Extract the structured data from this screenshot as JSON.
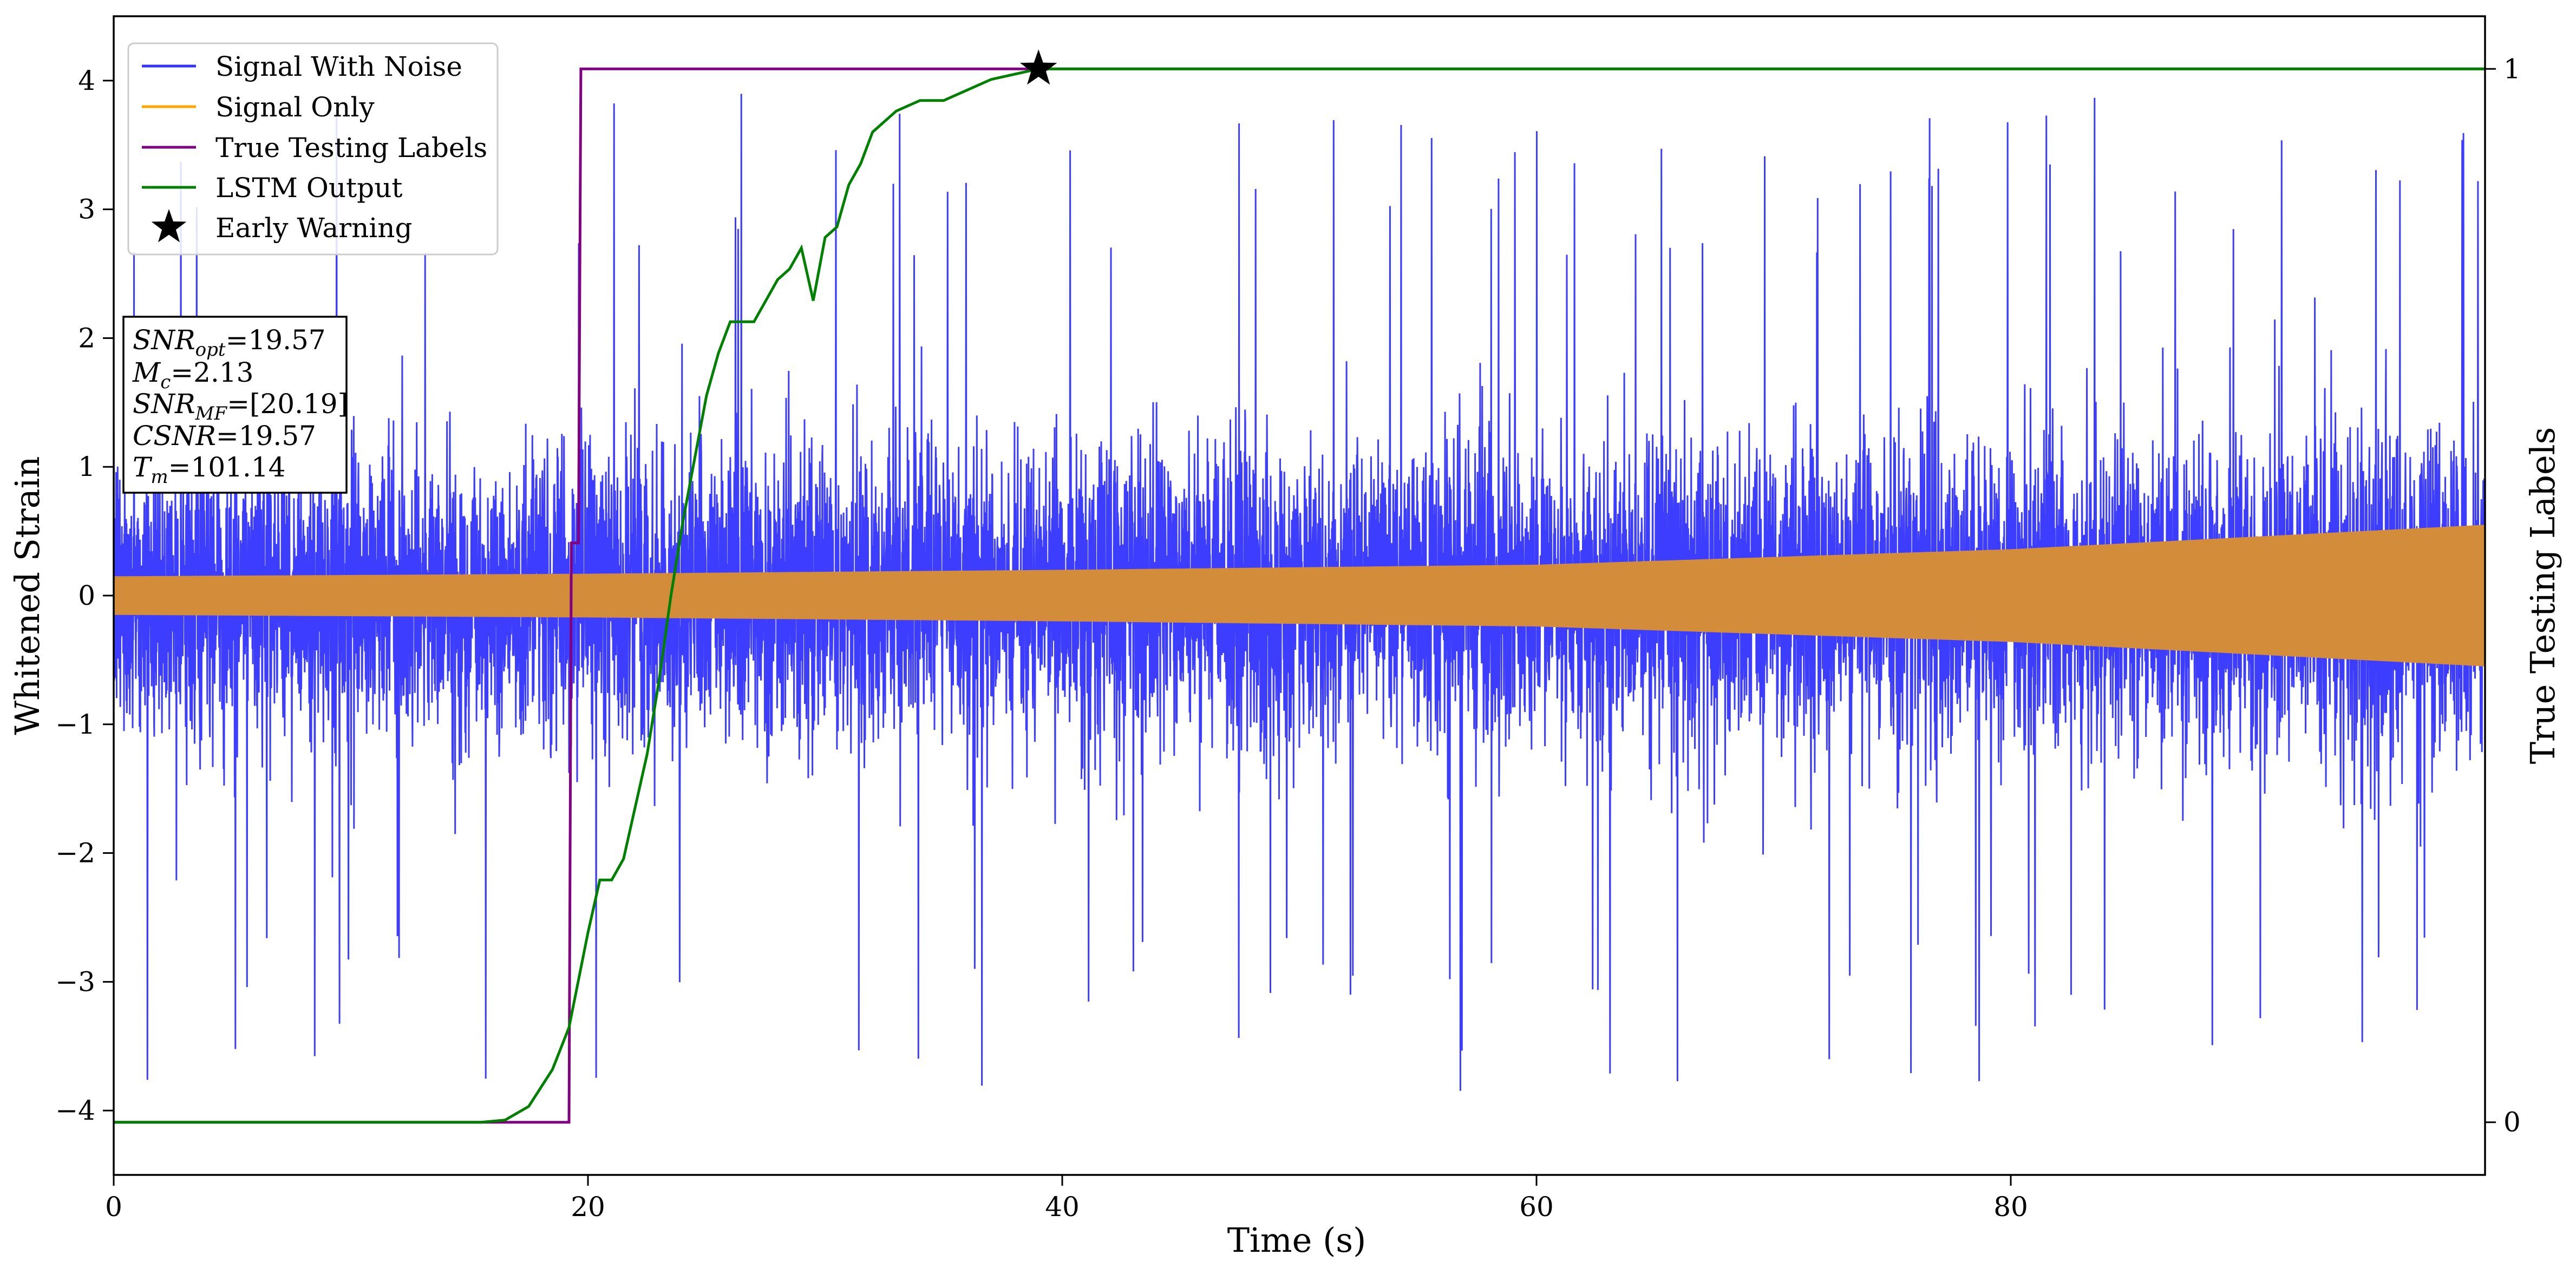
{
  "chart_data": {
    "type": "line",
    "xlabel": "Time (s)",
    "ylabel": "Whitened Strain",
    "y2label": "True Testing Labels",
    "xlim": [
      0,
      100
    ],
    "ylim": [
      -4.5,
      4.5
    ],
    "y2lim": [
      -0.05,
      1.05
    ],
    "xticks": [
      0,
      20,
      40,
      60,
      80
    ],
    "yticks": [
      -4,
      -3,
      -2,
      -1,
      0,
      1,
      2,
      3,
      4
    ],
    "y2ticks": [
      0,
      1
    ],
    "grid": false,
    "legend_position": "top-left",
    "series": [
      {
        "name": "Signal With Noise",
        "axis": "left",
        "color": "#3333ff",
        "style": "dense noisy line, typical amplitude about ±1.4, spikes to about ±4",
        "baseline_sigma": 0.55,
        "max_peak": 4.05,
        "min_trough": -4.02
      },
      {
        "name": "Signal Only",
        "axis": "left",
        "color": "#ffa500",
        "style": "chirp envelope, amplitude grows with time",
        "envelope_x": [
          0,
          20,
          40,
          60,
          80,
          100
        ],
        "envelope_amplitude": [
          0.15,
          0.17,
          0.2,
          0.24,
          0.36,
          0.55
        ]
      },
      {
        "name": "True Testing Labels",
        "axis": "right",
        "color": "#800080",
        "x": [
          0,
          19.2,
          19.3,
          19.6,
          19.7,
          100
        ],
        "y": [
          0,
          0,
          0.55,
          0.55,
          1,
          1
        ]
      },
      {
        "name": "LSTM Output",
        "axis": "right",
        "color": "#008000",
        "x": [
          0,
          15.5,
          16.5,
          17.5,
          18.5,
          19.2,
          20,
          20.5,
          21,
          21.5,
          22,
          22.5,
          23,
          23.5,
          24,
          24.5,
          25,
          25.5,
          26,
          26.5,
          27,
          27.5,
          28,
          28.5,
          29,
          29.5,
          30,
          30.5,
          31,
          31.5,
          32,
          33,
          34,
          35,
          36,
          37,
          38,
          39,
          40,
          42,
          45,
          50,
          100
        ],
        "y": [
          0,
          0,
          0.002,
          0.015,
          0.05,
          0.09,
          0.18,
          0.23,
          0.23,
          0.25,
          0.3,
          0.35,
          0.42,
          0.5,
          0.57,
          0.63,
          0.69,
          0.73,
          0.76,
          0.76,
          0.76,
          0.78,
          0.8,
          0.81,
          0.83,
          0.78,
          0.84,
          0.85,
          0.89,
          0.91,
          0.94,
          0.96,
          0.97,
          0.97,
          0.98,
          0.99,
          0.995,
          1.0,
          1.0,
          1.0,
          1.0,
          1.0,
          1.0
        ]
      }
    ],
    "markers": [
      {
        "name": "Early Warning",
        "x": 39,
        "y2": 1.0,
        "symbol": "star",
        "color": "#000000"
      }
    ],
    "annotation_box": {
      "position": "upper-left",
      "lines": [
        {
          "var": "SNR",
          "sub": "opt",
          "value": "=19.57"
        },
        {
          "var": "M",
          "sub": "c",
          "value": "=2.13"
        },
        {
          "var": "SNR",
          "sub": "MF",
          "value": "=[20.19]"
        },
        {
          "var": "CSNR",
          "sub": "",
          "value": "=19.57"
        },
        {
          "var": "T",
          "sub": "m",
          "value": "=101.14"
        }
      ]
    }
  }
}
